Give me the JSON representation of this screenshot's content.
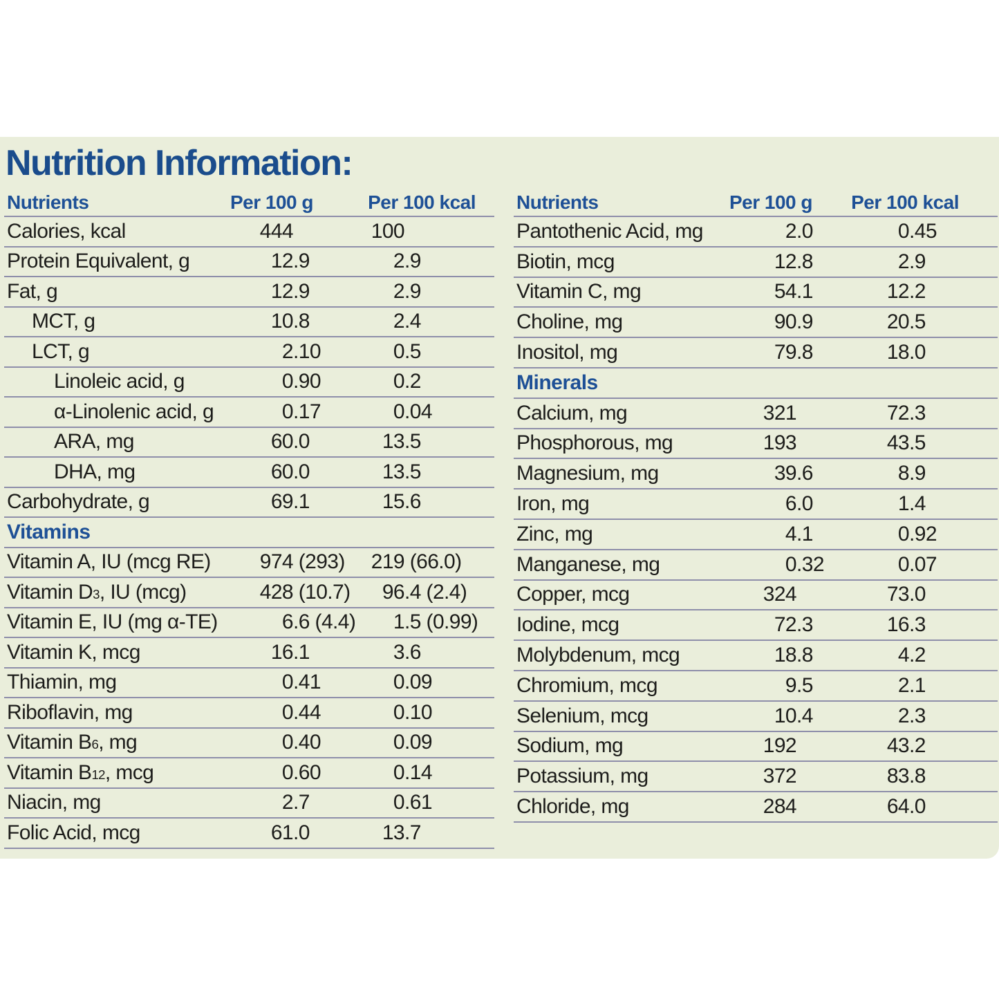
{
  "title": "Nutrition Information:",
  "columns": {
    "nutrients": "Nutrients",
    "per_100_g": "Per 100 g",
    "per_100_kcal": "Per 100 kcal"
  },
  "colors": {
    "panel_background": "#eaeedb",
    "heading_blue": "#1e5096",
    "title_blue": "#1a4c8c",
    "rule_line": "#8e8eaa",
    "body_text": "#1d1d1b"
  },
  "left_table": {
    "rows": [
      {
        "label": "Calories, kcal",
        "g": "444",
        "kcal": "100"
      },
      {
        "label": "Protein Equivalent, g",
        "g": "12.9",
        "kcal": "2.9"
      },
      {
        "label": "Fat, g",
        "g": "12.9",
        "kcal": "2.9"
      },
      {
        "label": "MCT, g",
        "indent": 1,
        "g": "10.8",
        "kcal": "2.4"
      },
      {
        "label": "LCT, g",
        "indent": 1,
        "g": "2.10",
        "kcal": "0.5"
      },
      {
        "label": "Linoleic acid, g",
        "indent": 2,
        "g": "0.90",
        "kcal": "0.2"
      },
      {
        "label": "α-Linolenic acid, g",
        "indent": 2,
        "g": "0.17",
        "kcal": "0.04"
      },
      {
        "label": "ARA, mg",
        "indent": 2,
        "g": "60.0",
        "kcal": "13.5"
      },
      {
        "label": "DHA, mg",
        "indent": 2,
        "g": "60.0",
        "kcal": "13.5"
      },
      {
        "label": "Carbohydrate, g",
        "g": "69.1",
        "kcal": "15.6"
      },
      {
        "section": "Vitamins"
      },
      {
        "label": "Vitamin A, IU (mcg RE)",
        "g": "974 (293)",
        "kcal": "219 (66.0)"
      },
      {
        "label": [
          "Vitamin D",
          "3",
          ", IU (mcg)"
        ],
        "g": "428 (10.7)",
        "kcal": "96.4 (2.4)"
      },
      {
        "label": "Vitamin E, IU (mg α-TE)",
        "g": "6.6 (4.4)",
        "kcal": "1.5 (0.99)"
      },
      {
        "label": "Vitamin K, mcg",
        "g": "16.1",
        "kcal": "3.6"
      },
      {
        "label": "Thiamin, mg",
        "g": "0.41",
        "kcal": "0.09"
      },
      {
        "label": "Riboflavin, mg",
        "g": "0.44",
        "kcal": "0.10"
      },
      {
        "label": [
          "Vitamin B",
          "6",
          ", mg"
        ],
        "g": "0.40",
        "kcal": "0.09"
      },
      {
        "label": [
          "Vitamin B",
          "12",
          ", mcg"
        ],
        "g": "0.60",
        "kcal": "0.14"
      },
      {
        "label": "Niacin, mg",
        "g": "2.7",
        "kcal": "0.61"
      },
      {
        "label": "Folic Acid, mcg",
        "g": "61.0",
        "kcal": "13.7"
      }
    ]
  },
  "right_table": {
    "rows": [
      {
        "label": "Pantothenic Acid, mg",
        "g": "2.0",
        "kcal": "0.45"
      },
      {
        "label": "Biotin, mcg",
        "g": "12.8",
        "kcal": "2.9"
      },
      {
        "label": "Vitamin C, mg",
        "g": "54.1",
        "kcal": "12.2"
      },
      {
        "label": "Choline, mg",
        "g": "90.9",
        "kcal": "20.5"
      },
      {
        "label": "Inositol, mg",
        "g": "79.8",
        "kcal": "18.0"
      },
      {
        "section": "Minerals"
      },
      {
        "label": "Calcium, mg",
        "g": "321",
        "kcal": "72.3"
      },
      {
        "label": "Phosphorous, mg",
        "g": "193",
        "kcal": "43.5"
      },
      {
        "label": "Magnesium, mg",
        "g": "39.6",
        "kcal": "8.9"
      },
      {
        "label": "Iron, mg",
        "g": "6.0",
        "kcal": "1.4"
      },
      {
        "label": "Zinc, mg",
        "g": "4.1",
        "kcal": "0.92"
      },
      {
        "label": "Manganese, mg",
        "g": "0.32",
        "kcal": "0.07"
      },
      {
        "label": "Copper, mcg",
        "g": "324",
        "kcal": "73.0"
      },
      {
        "label": "Iodine, mcg",
        "g": "72.3",
        "kcal": "16.3"
      },
      {
        "label": "Molybdenum, mcg",
        "g": "18.8",
        "kcal": "4.2"
      },
      {
        "label": "Chromium, mcg",
        "g": "9.5",
        "kcal": "2.1"
      },
      {
        "label": "Selenium, mcg",
        "g": "10.4",
        "kcal": "2.3"
      },
      {
        "label": "Sodium, mg",
        "g": "192",
        "kcal": "43.2"
      },
      {
        "label": "Potassium, mg",
        "g": "372",
        "kcal": "83.8"
      },
      {
        "label": "Chloride, mg",
        "g": "284",
        "kcal": "64.0"
      }
    ]
  }
}
